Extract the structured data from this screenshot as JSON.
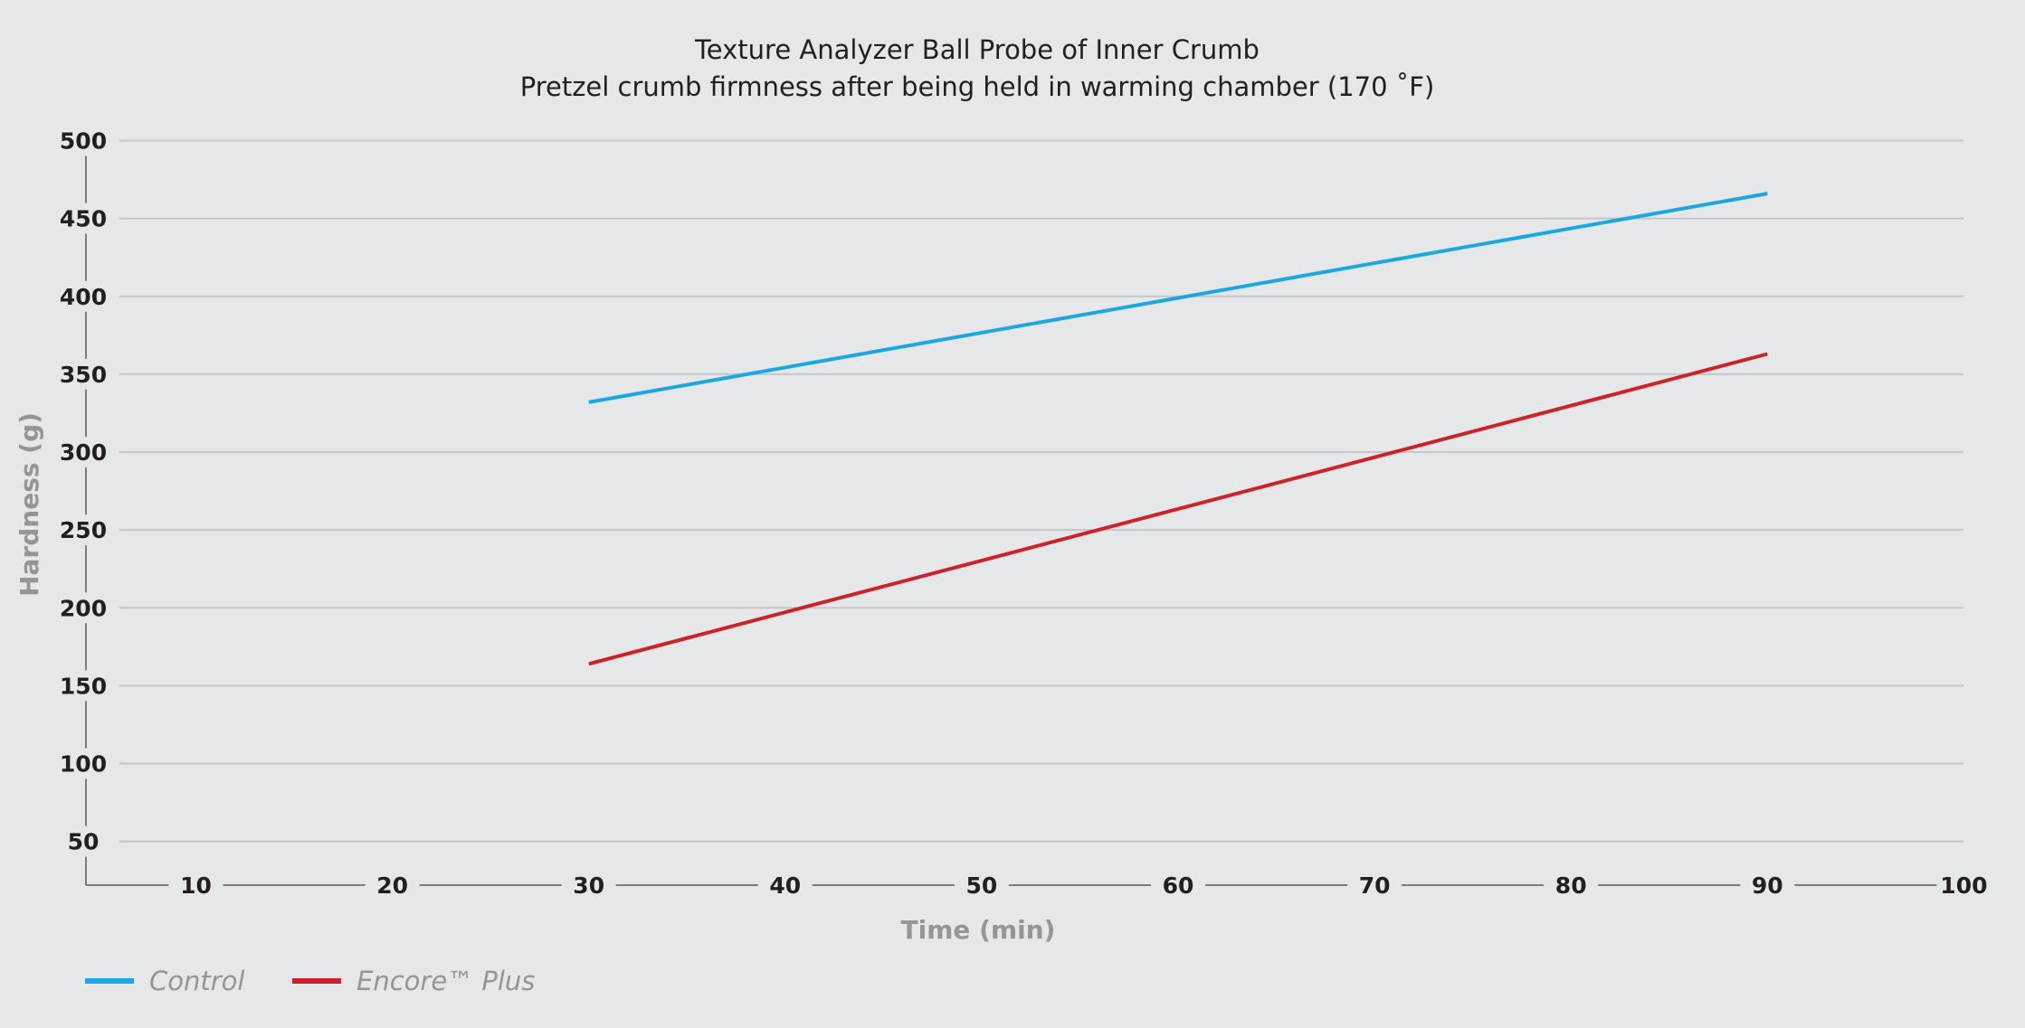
{
  "chart_data": {
    "type": "line",
    "title": "Texture Analyzer Ball Probe of Inner Crumb",
    "subtitle": "Pretzel crumb firmness after being held in warming chamber (170 ˚F)",
    "xlabel": "Time (min)",
    "ylabel": "Hardness (g)",
    "xlim": [
      5,
      100
    ],
    "ylim": [
      20,
      500
    ],
    "x_ticks": [
      10,
      20,
      30,
      40,
      50,
      60,
      70,
      80,
      90,
      100
    ],
    "y_ticks": [
      50,
      100,
      150,
      200,
      250,
      300,
      350,
      400,
      450,
      500
    ],
    "grid": true,
    "legend_position": "bottom-left",
    "series": [
      {
        "name": "Control",
        "color": "#1ba8e0",
        "x": [
          30,
          90
        ],
        "y": [
          332,
          466
        ]
      },
      {
        "name": "Encore™ Plus",
        "color": "#cc2229",
        "x": [
          30,
          90
        ],
        "y": [
          164,
          363
        ]
      }
    ]
  }
}
